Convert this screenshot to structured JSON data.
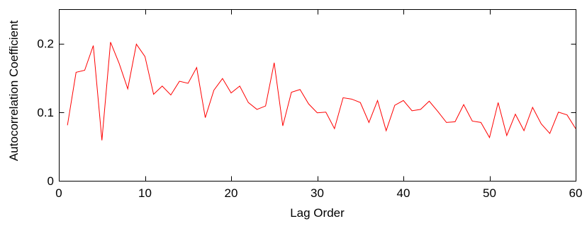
{
  "chart_data": {
    "type": "line",
    "title": "",
    "xlabel": "Lag Order",
    "ylabel": "Autocorrelation Coefficient",
    "xlim": [
      0,
      60
    ],
    "ylim": [
      0,
      0.25
    ],
    "xticks": [
      0,
      10,
      20,
      30,
      40,
      50,
      60
    ],
    "xtick_labels": [
      "0",
      "10",
      "20",
      "30",
      "40",
      "50",
      "60"
    ],
    "yticks": [
      0,
      0.1,
      0.2
    ],
    "ytick_labels": [
      "0",
      "0.1",
      "0.2"
    ],
    "grid": false,
    "series": [
      {
        "color": "#ff0000",
        "x": [
          1,
          2,
          3,
          4,
          5,
          6,
          7,
          8,
          9,
          10,
          11,
          12,
          13,
          14,
          15,
          16,
          17,
          18,
          19,
          20,
          21,
          22,
          23,
          24,
          25,
          26,
          27,
          28,
          29,
          30,
          31,
          32,
          33,
          34,
          35,
          36,
          37,
          38,
          39,
          40,
          41,
          42,
          43,
          44,
          45,
          46,
          47,
          48,
          49,
          50,
          51,
          52,
          53,
          54,
          55,
          56,
          57,
          58,
          59,
          60
        ],
        "y": [
          0.081,
          0.158,
          0.161,
          0.197,
          0.059,
          0.202,
          0.171,
          0.134,
          0.199,
          0.181,
          0.126,
          0.138,
          0.125,
          0.145,
          0.142,
          0.165,
          0.092,
          0.132,
          0.149,
          0.128,
          0.138,
          0.114,
          0.104,
          0.109,
          0.172,
          0.08,
          0.129,
          0.133,
          0.112,
          0.099,
          0.1,
          0.076,
          0.121,
          0.119,
          0.114,
          0.085,
          0.117,
          0.073,
          0.11,
          0.117,
          0.102,
          0.104,
          0.116,
          0.101,
          0.085,
          0.086,
          0.111,
          0.087,
          0.085,
          0.063,
          0.114,
          0.066,
          0.097,
          0.073,
          0.107,
          0.083,
          0.069,
          0.1,
          0.096,
          0.076
        ]
      }
    ]
  }
}
